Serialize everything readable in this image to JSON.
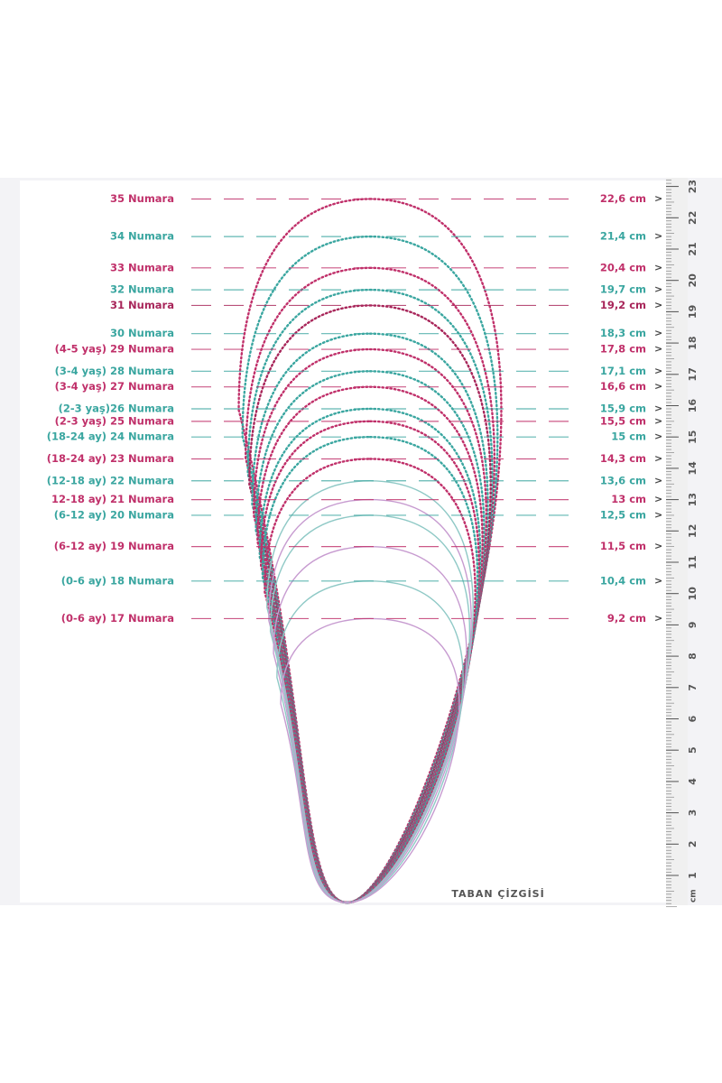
{
  "row_marker": ">",
  "baseline_label": "TABAN ÇİZGİSİ",
  "ruler": {
    "unit": "cm",
    "ticks": [
      1,
      2,
      3,
      4,
      5,
      6,
      7,
      8,
      9,
      10,
      11,
      12,
      13,
      14,
      15,
      16,
      17,
      18,
      19,
      20,
      21,
      22,
      23
    ]
  },
  "rows": [
    {
      "label": "35 Numara",
      "length_cm": 22.6,
      "length_label": "22,6 cm",
      "color": "#c0306a"
    },
    {
      "label": "34 Numara",
      "length_cm": 21.4,
      "length_label": "21,4 cm",
      "color": "#3aa6a0"
    },
    {
      "label": "33 Numara",
      "length_cm": 20.4,
      "length_label": "20,4 cm",
      "color": "#c0306a"
    },
    {
      "label": "32 Numara",
      "length_cm": 19.7,
      "length_label": "19,7 cm",
      "color": "#3aa6a0"
    },
    {
      "label": "31 Numara",
      "length_cm": 19.2,
      "length_label": "19,2 cm",
      "color": "#a8265a"
    },
    {
      "label": "30 Numara",
      "length_cm": 18.3,
      "length_label": "18,3 cm",
      "color": "#3aa6a0"
    },
    {
      "label": "(4-5 yaş) 29 Numara",
      "length_cm": 17.8,
      "length_label": "17,8 cm",
      "color": "#c0306a"
    },
    {
      "label": "(3-4 yaş) 28 Numara",
      "length_cm": 17.1,
      "length_label": "17,1 cm",
      "color": "#3aa6a0"
    },
    {
      "label": "(3-4 yaş) 27 Numara",
      "length_cm": 16.6,
      "length_label": "16,6 cm",
      "color": "#c0306a"
    },
    {
      "label": "(2-3 yaş)26 Numara",
      "length_cm": 15.9,
      "length_label": "15,9 cm",
      "color": "#3aa6a0"
    },
    {
      "label": "(2-3 yaş) 25 Numara",
      "length_cm": 15.5,
      "length_label": "15,5 cm",
      "color": "#c0306a"
    },
    {
      "label": "(18-24 ay) 24 Numara",
      "length_cm": 15,
      "length_label": "15 cm",
      "color": "#3aa6a0"
    },
    {
      "label": "(18-24 ay) 23 Numara",
      "length_cm": 14.3,
      "length_label": "14,3 cm",
      "color": "#c0306a"
    },
    {
      "label": "(12-18 ay) 22 Numara",
      "length_cm": 13.6,
      "length_label": "13,6 cm",
      "color": "#3aa6a0"
    },
    {
      "label": "12-18 ay) 21 Numara",
      "length_cm": 13,
      "length_label": "13 cm",
      "color": "#c0306a"
    },
    {
      "label": "(6-12 ay) 20 Numara",
      "length_cm": 12.5,
      "length_label": "12,5 cm",
      "color": "#3aa6a0"
    },
    {
      "label": "(6-12 ay) 19 Numara",
      "length_cm": 11.5,
      "length_label": "11,5 cm",
      "color": "#c0306a"
    },
    {
      "label": "(0-6 ay) 18 Numara",
      "length_cm": 10.4,
      "length_label": "10,4 cm",
      "color": "#3aa6a0"
    },
    {
      "label": "(0-6 ay) 17 Numara",
      "length_cm": 9.2,
      "length_label": "9,2 cm",
      "color": "#c0306a"
    }
  ]
}
